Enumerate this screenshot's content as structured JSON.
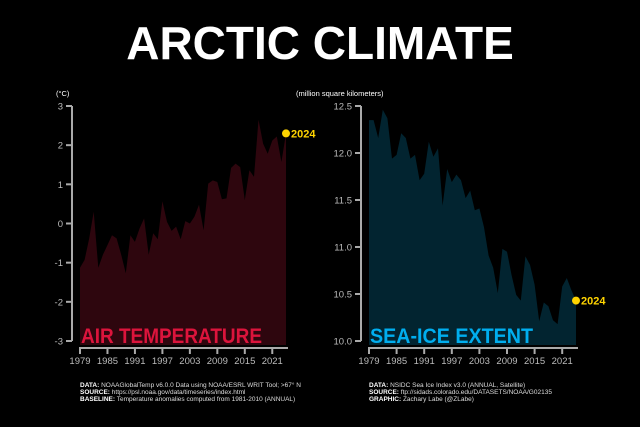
{
  "title": "ARCTIC CLIMATE",
  "chart_data": [
    {
      "type": "area",
      "title": "AIR TEMPERATURE",
      "ylabel": "(°C)",
      "ylim": [
        -3,
        3
      ],
      "yticks": [
        "3",
        "2",
        "1",
        "0",
        "-1",
        "-2",
        "-3"
      ],
      "ytick_values": [
        3,
        2,
        1,
        0,
        -1,
        -2,
        -3
      ],
      "xticks": [
        "1979",
        "1985",
        "1991",
        "1997",
        "2003",
        "2009",
        "2015",
        "2021"
      ],
      "xlim": [
        1979,
        2024
      ],
      "color": "#2e060e",
      "label_color": "#dc143c",
      "highlight": {
        "label": "2024",
        "color": "#ffd400"
      },
      "x": [
        1979,
        1980,
        1981,
        1982,
        1983,
        1984,
        1985,
        1986,
        1987,
        1988,
        1989,
        1990,
        1991,
        1992,
        1993,
        1994,
        1995,
        1996,
        1997,
        1998,
        1999,
        2000,
        2001,
        2002,
        2003,
        2004,
        2005,
        2006,
        2007,
        2008,
        2009,
        2010,
        2011,
        2012,
        2013,
        2014,
        2015,
        2016,
        2017,
        2018,
        2019,
        2020,
        2021,
        2022,
        2023,
        2024
      ],
      "values": [
        -1.13,
        -0.93,
        -0.38,
        0.3,
        -1.13,
        -0.8,
        -0.55,
        -0.3,
        -0.38,
        -0.8,
        -1.27,
        -0.3,
        -0.47,
        -0.13,
        0.13,
        -0.8,
        -0.25,
        -0.4,
        0.57,
        0.04,
        -0.19,
        -0.08,
        -0.4,
        0.06,
        0.0,
        0.17,
        0.48,
        -0.17,
        1.02,
        1.1,
        1.06,
        0.62,
        0.64,
        1.42,
        1.53,
        1.44,
        0.6,
        1.36,
        1.19,
        2.65,
        2.04,
        1.78,
        2.12,
        2.22,
        1.57,
        2.3
      ]
    },
    {
      "type": "area",
      "title": "SEA-ICE EXTENT",
      "ylabel": "(million square kilometers)",
      "ylim": [
        10.0,
        12.5
      ],
      "yticks": [
        "12.5",
        "12.0",
        "11.5",
        "11.0",
        "10.5",
        "10.0"
      ],
      "ytick_values": [
        12.5,
        12.0,
        11.5,
        11.0,
        10.5,
        10.0
      ],
      "xticks": [
        "1979",
        "1985",
        "1991",
        "1997",
        "2003",
        "2009",
        "2015",
        "2021"
      ],
      "xlim": [
        1979,
        2024
      ],
      "color": "#022430",
      "label_color": "#00aeef",
      "highlight": {
        "label": "2024",
        "color": "#ffd400"
      },
      "x": [
        1979,
        1980,
        1981,
        1982,
        1983,
        1984,
        1985,
        1986,
        1987,
        1988,
        1989,
        1990,
        1991,
        1992,
        1993,
        1994,
        1995,
        1996,
        1997,
        1998,
        1999,
        2000,
        2001,
        2002,
        2003,
        2004,
        2005,
        2006,
        2007,
        2008,
        2009,
        2010,
        2011,
        2012,
        2013,
        2014,
        2015,
        2016,
        2017,
        2018,
        2019,
        2020,
        2021,
        2022,
        2023,
        2024
      ],
      "values": [
        12.35,
        12.35,
        12.16,
        12.46,
        12.37,
        11.94,
        11.98,
        12.21,
        12.16,
        11.94,
        11.98,
        11.71,
        11.78,
        12.12,
        11.96,
        12.05,
        11.44,
        11.83,
        11.69,
        11.77,
        11.71,
        11.52,
        11.6,
        11.39,
        11.41,
        11.21,
        10.91,
        10.78,
        10.51,
        10.98,
        10.95,
        10.7,
        10.49,
        10.43,
        10.9,
        10.81,
        10.6,
        10.21,
        10.41,
        10.37,
        10.22,
        10.18,
        10.58,
        10.67,
        10.54,
        10.43
      ]
    }
  ],
  "footer_left": {
    "data_label": "DATA:",
    "data": "NOAAGlobalTemp v6.0.0 Data using NOAA/ESRL WRIT Tool; >67° N",
    "source_label": "SOURCE:",
    "source": "https://psl.noaa.gov/data/timeseries/index.html",
    "baseline_label": "BASELINE:",
    "baseline": "Temperature anomalies computed from 1981-2010 (ANNUAL)"
  },
  "footer_right": {
    "data_label": "DATA:",
    "data": "NSIDC Sea Ice Index v3.0 (ANNUAL, Satellite)",
    "source_label": "SOURCE:",
    "source": "ftp://sidads.colorado.edu/DATASETS/NOAA/G02135",
    "graphic_label": "GRAPHIC:",
    "graphic": "Zachary Labe (@ZLabe)"
  }
}
